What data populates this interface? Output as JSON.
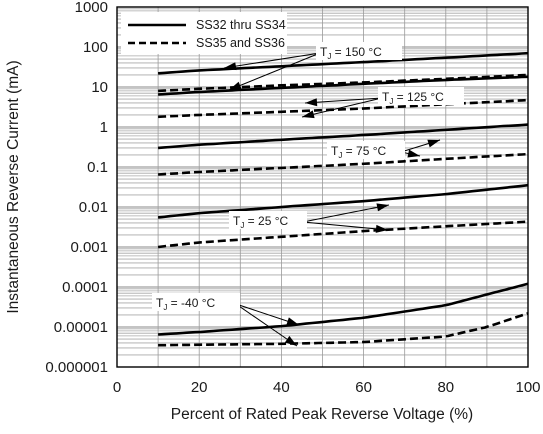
{
  "chart_data": {
    "type": "line",
    "title": "",
    "xlabel": "Percent of Rated Peak Reverse Voltage (%)",
    "ylabel": "Instantaneous Reverse Current (mA)",
    "xlim": [
      0,
      100
    ],
    "ylim": [
      1e-06,
      1000
    ],
    "yscale": "log",
    "x_ticks": [
      0,
      20,
      40,
      60,
      80,
      100
    ],
    "y_ticks": [
      {
        "value": 1000,
        "label": "1000"
      },
      {
        "value": 100,
        "label": "100"
      },
      {
        "value": 10,
        "label": "10"
      },
      {
        "value": 1,
        "label": "1"
      },
      {
        "value": 0.1,
        "label": "0.1"
      },
      {
        "value": 0.01,
        "label": "0.01"
      },
      {
        "value": 0.001,
        "label": "0.001"
      },
      {
        "value": 0.0001,
        "label": "0.0001"
      },
      {
        "value": 1e-05,
        "label": "0.00001"
      },
      {
        "value": 1e-06,
        "label": "0.000001"
      }
    ],
    "grid": true,
    "legend": {
      "position": "top-left",
      "entries": [
        {
          "label": "SS32 thru SS34",
          "style": "solid"
        },
        {
          "label": "SS35 and SS36",
          "style": "dashed"
        }
      ]
    },
    "annotations": [
      {
        "main": "T",
        "sub": "J",
        "rest": " = 150 °C"
      },
      {
        "main": "T",
        "sub": "J",
        "rest": " = 125 °C"
      },
      {
        "main": "T",
        "sub": "J",
        "rest": " = 75 °C"
      },
      {
        "main": "T",
        "sub": "J",
        "rest": " = 25 °C"
      },
      {
        "main": "T",
        "sub": "J",
        "rest": " = -40 °C"
      }
    ],
    "series": [
      {
        "group": 0,
        "style": "solid",
        "x": [
          10,
          20,
          40,
          60,
          80,
          100
        ],
        "y": [
          22,
          26,
          33,
          42,
          54,
          70
        ]
      },
      {
        "group": 0,
        "style": "dashed",
        "x": [
          10,
          20,
          40,
          60,
          80,
          100
        ],
        "y": [
          8,
          9,
          11,
          13,
          16,
          20
        ]
      },
      {
        "group": 1,
        "style": "solid",
        "x": [
          10,
          20,
          40,
          60,
          80,
          100
        ],
        "y": [
          6.5,
          7.5,
          9.5,
          12,
          15,
          18
        ]
      },
      {
        "group": 1,
        "style": "dashed",
        "x": [
          10,
          20,
          40,
          60,
          80,
          100
        ],
        "y": [
          1.8,
          2.0,
          2.4,
          2.9,
          3.7,
          4.7
        ]
      },
      {
        "group": 2,
        "style": "solid",
        "x": [
          10,
          20,
          40,
          60,
          80,
          100
        ],
        "y": [
          0.3,
          0.36,
          0.48,
          0.63,
          0.85,
          1.15
        ]
      },
      {
        "group": 2,
        "style": "dashed",
        "x": [
          10,
          20,
          40,
          60,
          80,
          100
        ],
        "y": [
          0.065,
          0.075,
          0.095,
          0.12,
          0.16,
          0.21
        ]
      },
      {
        "group": 3,
        "style": "solid",
        "x": [
          10,
          20,
          40,
          60,
          80,
          100
        ],
        "y": [
          0.0055,
          0.007,
          0.01,
          0.014,
          0.021,
          0.035
        ]
      },
      {
        "group": 3,
        "style": "dashed",
        "x": [
          10,
          20,
          40,
          60,
          80,
          100
        ],
        "y": [
          0.001,
          0.0013,
          0.0018,
          0.0025,
          0.0033,
          0.0043
        ]
      },
      {
        "group": 4,
        "style": "solid",
        "x": [
          10,
          20,
          40,
          60,
          80,
          90,
          100
        ],
        "y": [
          6.5e-06,
          7.5e-06,
          1.05e-05,
          1.7e-05,
          3.5e-05,
          6.5e-05,
          0.00012
        ]
      },
      {
        "group": 4,
        "style": "dashed",
        "x": [
          10,
          20,
          40,
          60,
          80,
          90,
          100
        ],
        "y": [
          3.5e-06,
          3.6e-06,
          3.8e-06,
          4.2e-06,
          5.8e-06,
          1e-05,
          2.2e-05
        ]
      }
    ]
  }
}
